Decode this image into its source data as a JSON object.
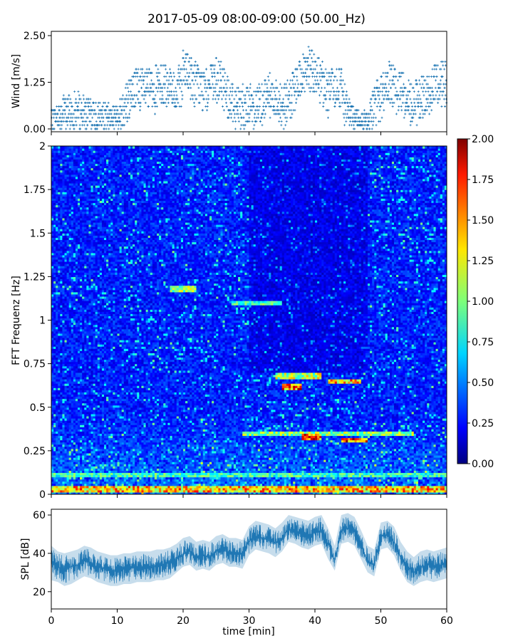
{
  "figure": {
    "title": "2017-05-09 08:00-09:00 (50.00_Hz)"
  },
  "chart_data": [
    {
      "id": "wind",
      "type": "scatter",
      "ylabel": "Wind [m/s]",
      "xlabel": "",
      "xlim": [
        0,
        60
      ],
      "ylim": [
        0,
        2.5
      ],
      "yticks": [
        0.0,
        1.25,
        2.5
      ],
      "ytick_labels": [
        "0.00",
        "1.25",
        "2.50"
      ],
      "xticks": [
        0,
        10,
        20,
        30,
        40,
        50,
        60
      ],
      "xtick_labels_visible": false,
      "grid": false,
      "color": "#1f77b4",
      "marker": "+",
      "envelope_note": "wind speed quantized in steps of ~0.1 m/s",
      "x": [
        0,
        2,
        4,
        6,
        8,
        10,
        11,
        12,
        13,
        14,
        16,
        18,
        19,
        20,
        21,
        22,
        23,
        24,
        25,
        26,
        27,
        28,
        30,
        32,
        33,
        34,
        35,
        36,
        37,
        38,
        39,
        40,
        41,
        42,
        43,
        44,
        45,
        46,
        47,
        48,
        49,
        50,
        51,
        52,
        53,
        54,
        55,
        56,
        57,
        58,
        59,
        60
      ],
      "y": [
        0.5,
        0.9,
        1.0,
        0.8,
        0.7,
        0.6,
        1.2,
        1.5,
        1.7,
        1.6,
        1.7,
        1.8,
        1.4,
        2.1,
        2.0,
        1.8,
        1.6,
        1.7,
        1.9,
        1.8,
        1.4,
        1.2,
        1.2,
        1.3,
        1.6,
        1.4,
        1.2,
        1.3,
        1.6,
        2.0,
        2.2,
        2.0,
        1.9,
        1.6,
        1.7,
        1.7,
        0.8,
        0.6,
        0.5,
        0.6,
        1.2,
        1.5,
        1.8,
        1.7,
        1.6,
        1.4,
        1.3,
        1.4,
        1.5,
        1.7,
        1.9,
        1.8
      ]
    },
    {
      "id": "spectrogram",
      "type": "heatmap",
      "ylabel": "FFT Frequenz [Hz]",
      "xlabel": "",
      "xlim": [
        0,
        60
      ],
      "ylim": [
        0,
        2
      ],
      "yticks": [
        0,
        0.25,
        0.5,
        0.75,
        1,
        1.25,
        1.5,
        1.75,
        2
      ],
      "ytick_labels": [
        "0",
        "0.25",
        "0.5",
        "0.75",
        "1",
        "1.25",
        "1.5",
        "1.75",
        "2"
      ],
      "xtick_labels_visible": false,
      "colormap": "jet",
      "colorbar": {
        "vmin": 0.0,
        "vmax": 2.0,
        "ticks": [
          0.0,
          0.25,
          0.5,
          0.75,
          1.0,
          1.25,
          1.5,
          1.75,
          2.0
        ],
        "tick_labels": [
          "0.00",
          "0.25",
          "0.50",
          "0.75",
          "1.00",
          "1.25",
          "1.50",
          "1.75",
          "2.00"
        ]
      },
      "background_level": 0.3,
      "features": [
        {
          "t0": 18.0,
          "t1": 22.0,
          "f": 1.18,
          "value": 1.2
        },
        {
          "t0": 27.5,
          "t1": 35.0,
          "f": 1.1,
          "value": 1.05
        },
        {
          "t0": 34.0,
          "t1": 41.0,
          "f": 0.68,
          "value": 1.3
        },
        {
          "t0": 35.0,
          "t1": 38.0,
          "f": 0.62,
          "value": 1.8
        },
        {
          "t0": 42.0,
          "t1": 47.0,
          "f": 0.65,
          "value": 1.6
        },
        {
          "t0": 29.0,
          "t1": 55.0,
          "f": 0.35,
          "value": 1.2
        },
        {
          "t0": 38.0,
          "t1": 41.0,
          "f": 0.33,
          "value": 1.8
        },
        {
          "t0": 44.0,
          "t1": 48.0,
          "f": 0.31,
          "value": 1.9
        },
        {
          "t0": 0.0,
          "t1": 60.0,
          "f": 0.03,
          "value": 1.6
        },
        {
          "t0": 0.0,
          "t1": 60.0,
          "f": 0.11,
          "value": 1.0
        }
      ]
    },
    {
      "id": "spl",
      "type": "line",
      "ylabel": "SPL [dB]",
      "xlabel": "time [min]",
      "xlim": [
        0,
        60
      ],
      "ylim": [
        11,
        63
      ],
      "yticks": [
        20,
        40,
        60
      ],
      "ytick_labels": [
        "20",
        "40",
        "60"
      ],
      "xticks": [
        0,
        10,
        20,
        30,
        40,
        50,
        60
      ],
      "xtick_labels": [
        "0",
        "10",
        "20",
        "30",
        "40",
        "50",
        "60"
      ],
      "grid": false,
      "color": "#1f77b4",
      "x": [
        0,
        1,
        2,
        3,
        4,
        5,
        6,
        7,
        8,
        9,
        10,
        11,
        12,
        13,
        14,
        15,
        16,
        17,
        18,
        19,
        20,
        21,
        22,
        23,
        24,
        25,
        26,
        27,
        28,
        29,
        30,
        31,
        32,
        33,
        34,
        35,
        36,
        37,
        38,
        39,
        40,
        41,
        42,
        43,
        44,
        45,
        46,
        47,
        48,
        49,
        50,
        51,
        52,
        53,
        54,
        55,
        56,
        57,
        58,
        59,
        60
      ],
      "y_mean": [
        36,
        33,
        32,
        33,
        34,
        36,
        35,
        33,
        32,
        31,
        31,
        32,
        32,
        33,
        33,
        33,
        34,
        34,
        35,
        37,
        40,
        41,
        38,
        39,
        38,
        41,
        42,
        40,
        40,
        39,
        46,
        49,
        48,
        47,
        45,
        48,
        53,
        52,
        50,
        49,
        51,
        52,
        45,
        36,
        52,
        53,
        51,
        44,
        36,
        34,
        49,
        50,
        46,
        38,
        33,
        30,
        33,
        34,
        33,
        34,
        35
      ],
      "y_low": [
        26,
        25,
        23,
        24,
        26,
        28,
        27,
        25,
        24,
        23,
        23,
        24,
        24,
        25,
        25,
        25,
        26,
        26,
        27,
        30,
        33,
        34,
        31,
        32,
        31,
        34,
        35,
        33,
        33,
        32,
        39,
        42,
        41,
        40,
        38,
        41,
        46,
        45,
        43,
        42,
        44,
        45,
        37,
        31,
        45,
        46,
        44,
        37,
        30,
        28,
        42,
        43,
        39,
        31,
        25,
        23,
        25,
        26,
        25,
        26,
        27
      ],
      "y_high": [
        44,
        41,
        40,
        41,
        42,
        44,
        43,
        41,
        40,
        39,
        39,
        40,
        40,
        41,
        41,
        41,
        42,
        42,
        43,
        45,
        48,
        49,
        46,
        47,
        46,
        49,
        50,
        48,
        48,
        47,
        54,
        57,
        56,
        55,
        53,
        56,
        60,
        59,
        58,
        57,
        59,
        60,
        53,
        44,
        60,
        61,
        59,
        52,
        44,
        42,
        56,
        57,
        54,
        46,
        41,
        38,
        41,
        42,
        41,
        42,
        43
      ]
    }
  ]
}
